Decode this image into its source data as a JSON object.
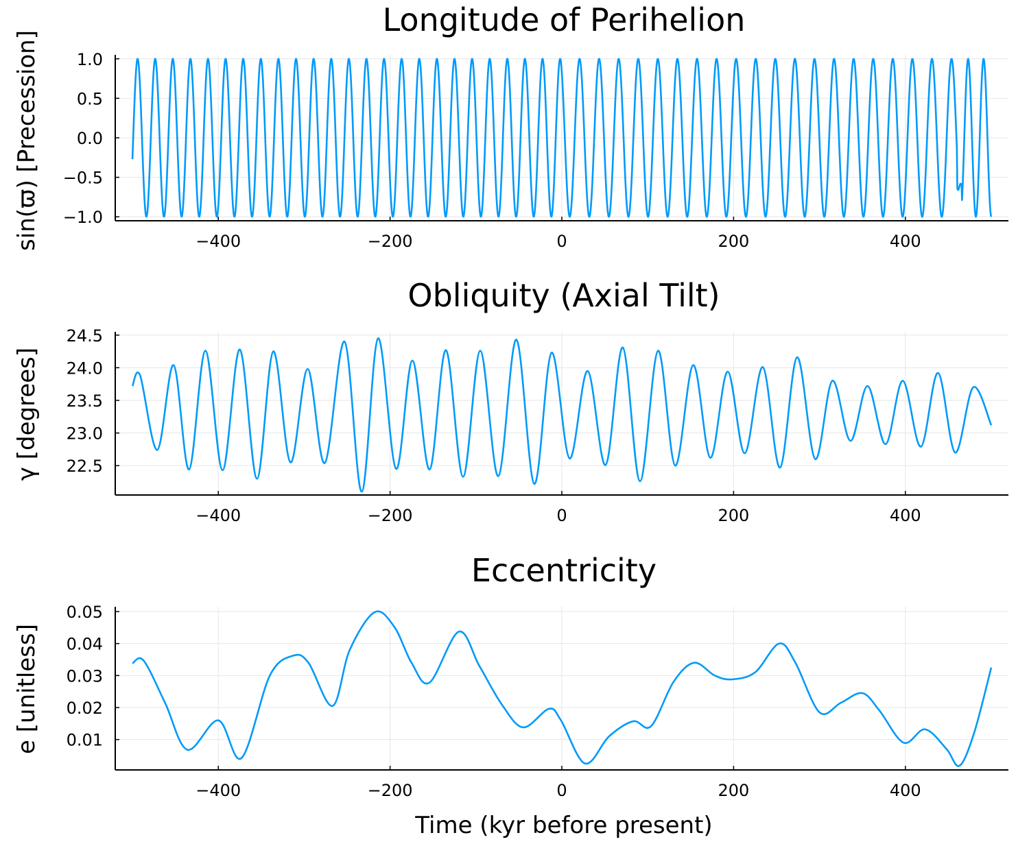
{
  "chart_data": [
    {
      "type": "line",
      "title": "Longitude of Perihelion",
      "xlabel": "",
      "ylabel": "sin(ϖ) [Precession]",
      "xlim": [
        -500,
        500
      ],
      "ylim": [
        -1.05,
        1.05
      ],
      "xticks": [
        -400,
        -200,
        0,
        200,
        400
      ],
      "yticks": [
        1.0,
        0.5,
        0.0,
        -0.5,
        -1.0
      ],
      "ytick_labels": [
        "1.0",
        "0.5",
        "0.0",
        "−0.5",
        "−1.0"
      ],
      "xtick_labels": [
        "−400",
        "−200",
        "0",
        "200",
        "400"
      ],
      "grid": true,
      "legend": "none",
      "series_color": "#009af9",
      "series": [
        {
          "x_range": [
            -500,
            500
          ],
          "x_step": 0.5,
          "form": "sin(phase)",
          "phase_at_start": -0.27,
          "period_kyr_segments": [
            [
              -500,
              0,
              20.5
            ],
            [
              0,
              460,
              22.8
            ],
            [
              460,
              500,
              18.0
            ]
          ]
        }
      ]
    },
    {
      "type": "line",
      "title": "Obliquity (Axial Tilt)",
      "xlabel": "",
      "ylabel": "γ [degrees]",
      "xlim": [
        -500,
        500
      ],
      "ylim": [
        22.05,
        24.55
      ],
      "xticks": [
        -400,
        -200,
        0,
        200,
        400
      ],
      "yticks": [
        24.5,
        24.0,
        23.5,
        23.0,
        22.5
      ],
      "ytick_labels": [
        "24.5",
        "24.0",
        "23.5",
        "23.0",
        "22.5"
      ],
      "xtick_labels": [
        "−400",
        "−200",
        "0",
        "200",
        "400"
      ],
      "grid": true,
      "legend": "none",
      "series_color": "#009af9",
      "series": [
        {
          "points": [
            [
              -500,
              23.72
            ],
            [
              -491,
              23.88
            ],
            [
              -471,
              22.74
            ],
            [
              -452,
              24.04
            ],
            [
              -434,
              22.44
            ],
            [
              -415,
              24.26
            ],
            [
              -395,
              22.43
            ],
            [
              -375,
              24.28
            ],
            [
              -355,
              22.3
            ],
            [
              -336,
              24.25
            ],
            [
              -316,
              22.55
            ],
            [
              -296,
              23.98
            ],
            [
              -276,
              22.54
            ],
            [
              -253,
              24.4
            ],
            [
              -233,
              22.1
            ],
            [
              -214,
              24.45
            ],
            [
              -193,
              22.45
            ],
            [
              -174,
              24.11
            ],
            [
              -154,
              22.44
            ],
            [
              -135,
              24.27
            ],
            [
              -115,
              22.33
            ],
            [
              -95,
              24.26
            ],
            [
              -74,
              22.34
            ],
            [
              -53,
              24.43
            ],
            [
              -32,
              22.22
            ],
            [
              -12,
              24.23
            ],
            [
              9,
              22.61
            ],
            [
              30,
              23.95
            ],
            [
              51,
              22.51
            ],
            [
              71,
              24.31
            ],
            [
              91,
              22.26
            ],
            [
              112,
              24.26
            ],
            [
              132,
              22.5
            ],
            [
              153,
              24.04
            ],
            [
              173,
              22.62
            ],
            [
              193,
              23.94
            ],
            [
              213,
              22.69
            ],
            [
              234,
              24.01
            ],
            [
              254,
              22.47
            ],
            [
              274,
              24.16
            ],
            [
              295,
              22.6
            ],
            [
              315,
              23.8
            ],
            [
              336,
              22.88
            ],
            [
              356,
              23.72
            ],
            [
              377,
              22.83
            ],
            [
              397,
              23.8
            ],
            [
              418,
              22.79
            ],
            [
              438,
              23.92
            ],
            [
              458,
              22.7
            ],
            [
              479,
              23.7
            ],
            [
              500,
              23.12
            ]
          ]
        }
      ]
    },
    {
      "type": "line",
      "title": "Eccentricity",
      "xlabel": "Time (kyr before present)",
      "ylabel": "e [unitless]",
      "xlim": [
        -500,
        500
      ],
      "ylim": [
        0.0005,
        0.0515
      ],
      "xticks": [
        -400,
        -200,
        0,
        200,
        400
      ],
      "yticks": [
        0.05,
        0.04,
        0.03,
        0.02,
        0.01
      ],
      "ytick_labels": [
        "0.05",
        "0.04",
        "0.03",
        "0.02",
        "0.01"
      ],
      "xtick_labels": [
        "−400",
        "−200",
        "0",
        "200",
        "400"
      ],
      "grid": true,
      "legend": "none",
      "series_color": "#009af9",
      "series": [
        {
          "points": [
            [
              -500,
              0.0338
            ],
            [
              -487,
              0.0347
            ],
            [
              -462,
              0.0215
            ],
            [
              -436,
              0.0068
            ],
            [
              -400,
              0.016
            ],
            [
              -373,
              0.0042
            ],
            [
              -340,
              0.03
            ],
            [
              -313,
              0.0362
            ],
            [
              -295,
              0.034
            ],
            [
              -267,
              0.0205
            ],
            [
              -247,
              0.038
            ],
            [
              -218,
              0.0498
            ],
            [
              -195,
              0.0452
            ],
            [
              -175,
              0.034
            ],
            [
              -154,
              0.0278
            ],
            [
              -120,
              0.0437
            ],
            [
              -96,
              0.033
            ],
            [
              -70,
              0.021
            ],
            [
              -45,
              0.0138
            ],
            [
              -15,
              0.0196
            ],
            [
              -1,
              0.016
            ],
            [
              27,
              0.0025
            ],
            [
              55,
              0.011
            ],
            [
              83,
              0.0157
            ],
            [
              104,
              0.0142
            ],
            [
              130,
              0.028
            ],
            [
              154,
              0.034
            ],
            [
              178,
              0.03
            ],
            [
              198,
              0.0288
            ],
            [
              225,
              0.031
            ],
            [
              253,
              0.04
            ],
            [
              272,
              0.034
            ],
            [
              300,
              0.0185
            ],
            [
              325,
              0.0215
            ],
            [
              350,
              0.0245
            ],
            [
              370,
              0.019
            ],
            [
              398,
              0.009
            ],
            [
              423,
              0.0132
            ],
            [
              448,
              0.007
            ],
            [
              463,
              0.0018
            ],
            [
              480,
              0.012
            ],
            [
              500,
              0.0325
            ]
          ]
        }
      ]
    }
  ]
}
